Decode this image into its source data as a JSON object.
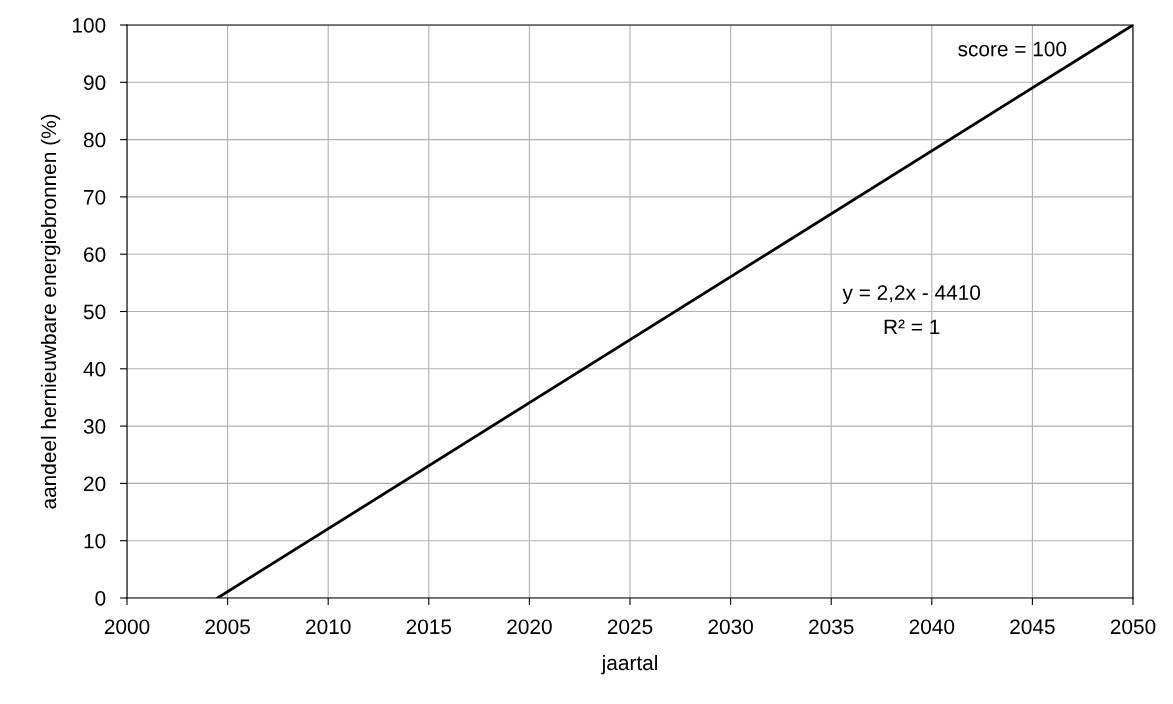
{
  "chart_data": {
    "type": "line",
    "xlabel": "jaartal",
    "ylabel": "aandeel hernieuwbare energiebronnen (%)",
    "series": [
      {
        "color": "#000000",
        "x": [
          2004.5,
          2050
        ],
        "values": [
          0,
          100
        ]
      }
    ],
    "xlim": [
      2000,
      2050
    ],
    "xticks": [
      2000,
      2005,
      2010,
      2015,
      2020,
      2025,
      2030,
      2035,
      2040,
      2045,
      2050
    ],
    "ylim": [
      0,
      100
    ],
    "yticks": [
      0,
      10,
      20,
      30,
      40,
      50,
      60,
      70,
      80,
      90,
      100
    ],
    "grid": true,
    "marker": "none",
    "line_style": "solid",
    "annotations": [
      "score = 100",
      "y = 2,2x - 4410",
      "R² = 1"
    ]
  }
}
